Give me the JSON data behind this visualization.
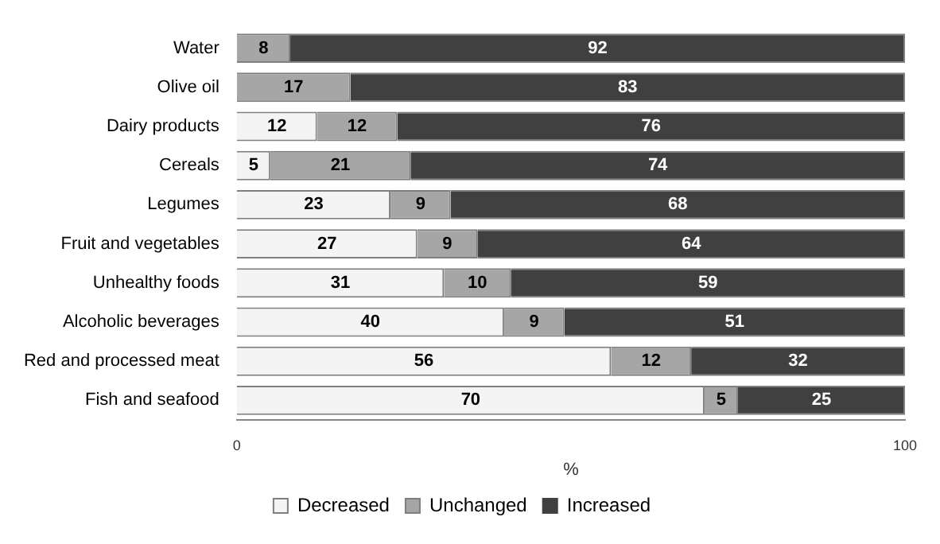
{
  "chart_data": {
    "type": "bar",
    "orientation": "horizontal",
    "stacked": true,
    "categories": [
      "Water",
      "Olive oil",
      "Dairy products",
      "Cereals",
      "Legumes",
      "Fruit and vegetables",
      "Unhealthy foods",
      "Alcoholic beverages",
      "Red and processed meat",
      "Fish and seafood"
    ],
    "series": [
      {
        "name": "Decreased",
        "color": "#f4f4f4",
        "values": [
          null,
          null,
          12,
          5,
          23,
          27,
          31,
          40,
          56,
          70
        ]
      },
      {
        "name": "Unchanged",
        "color": "#a6a6a6",
        "values": [
          8,
          17,
          12,
          21,
          9,
          9,
          10,
          9,
          12,
          5
        ]
      },
      {
        "name": "Increased",
        "color": "#404040",
        "values": [
          92,
          83,
          76,
          74,
          68,
          64,
          59,
          51,
          32,
          25
        ]
      }
    ],
    "xlim": [
      0,
      100
    ],
    "xticks": [
      0,
      100
    ],
    "xlabel": "%",
    "data_labels": true,
    "legend": "bottom",
    "grid": false
  }
}
